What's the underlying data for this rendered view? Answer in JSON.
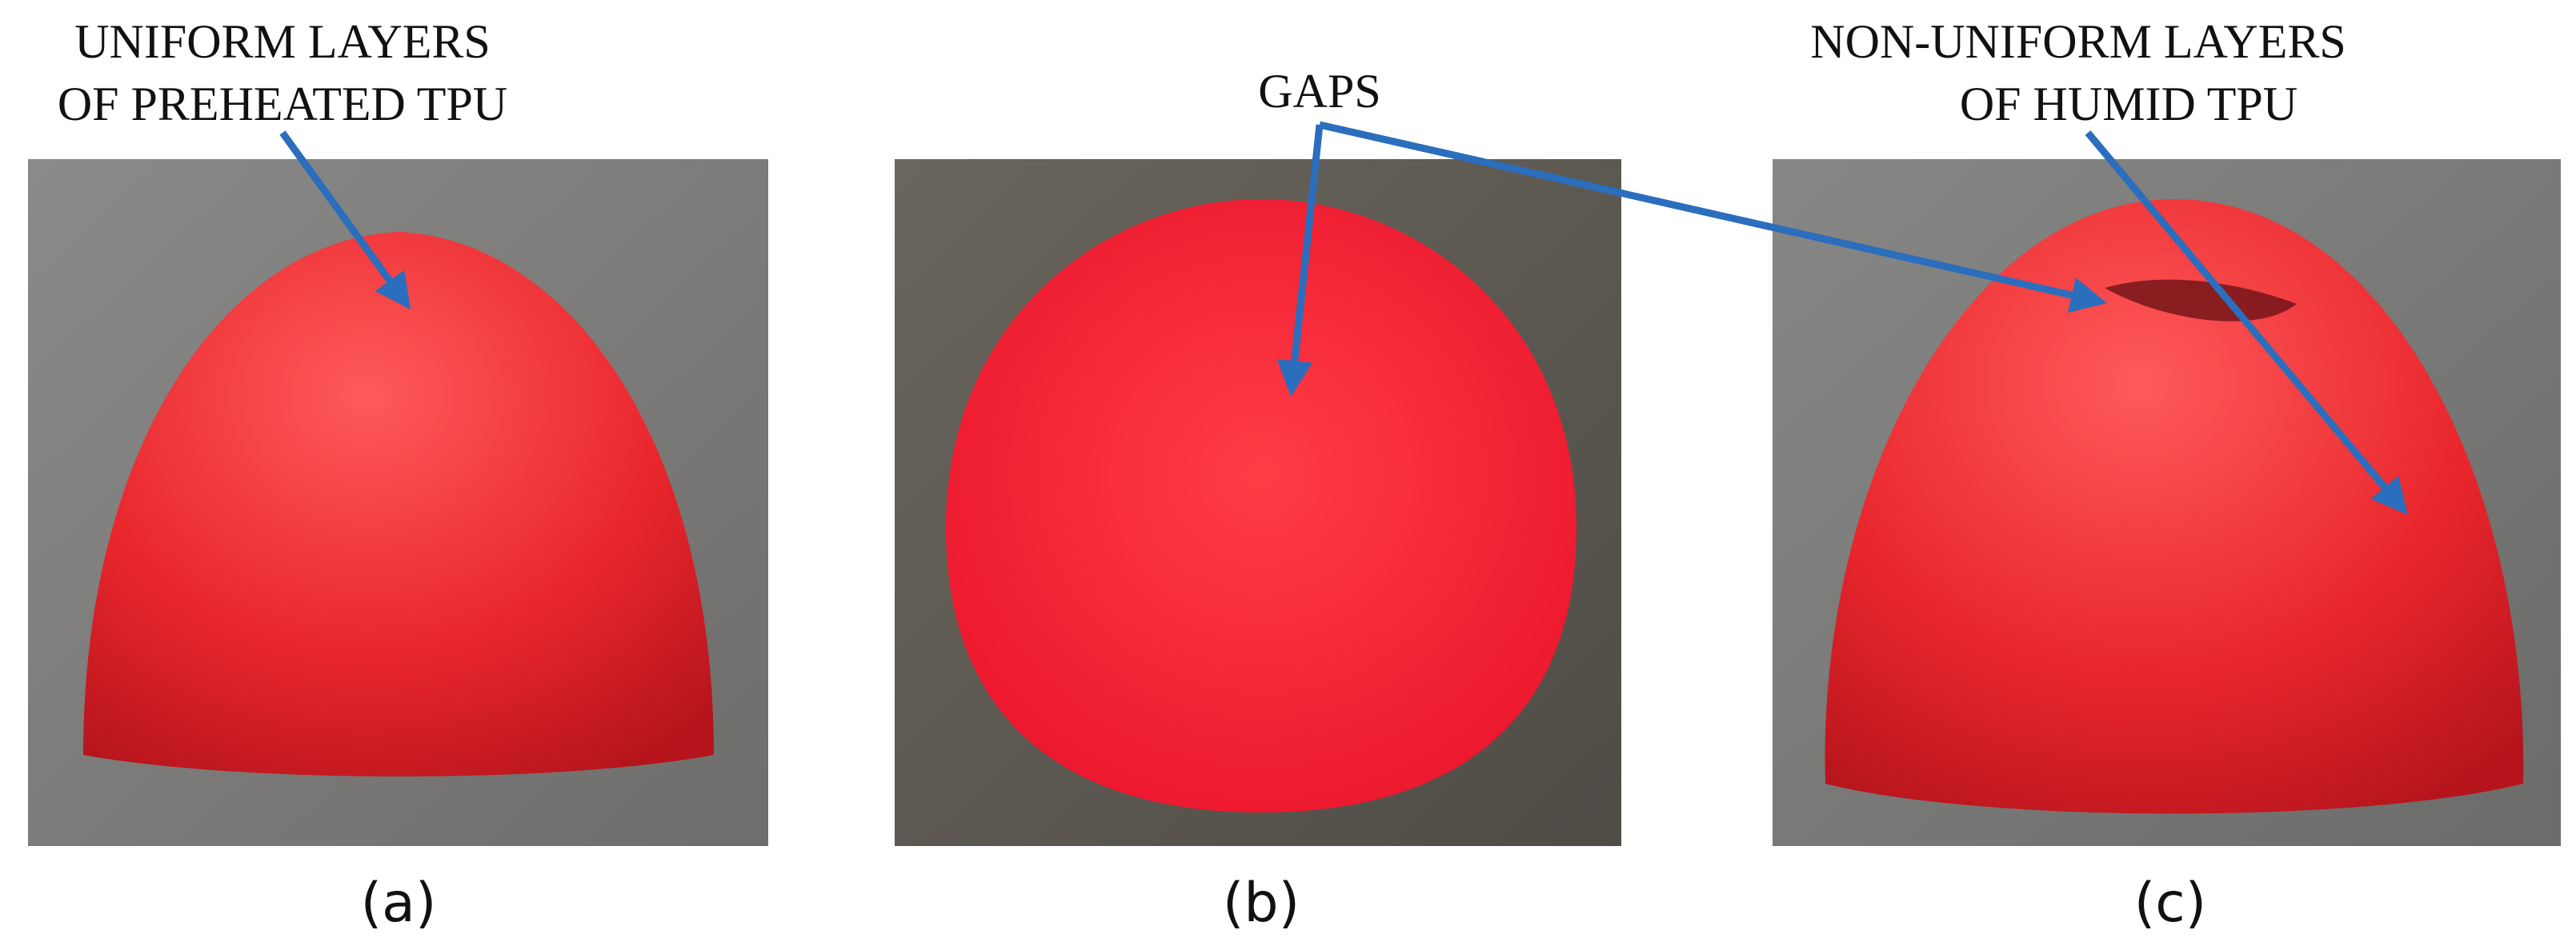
{
  "panels": [
    {
      "label": "(a)",
      "annotation": [
        "UNIFORM LAYERS",
        "OF PREHEATED TPU"
      ]
    },
    {
      "label": "(b)",
      "annotation": [
        "GAPS"
      ]
    },
    {
      "label": "(c)",
      "annotation": [
        "NON-UNIFORM LAYERS",
        "OF HUMID TPU"
      ]
    }
  ]
}
